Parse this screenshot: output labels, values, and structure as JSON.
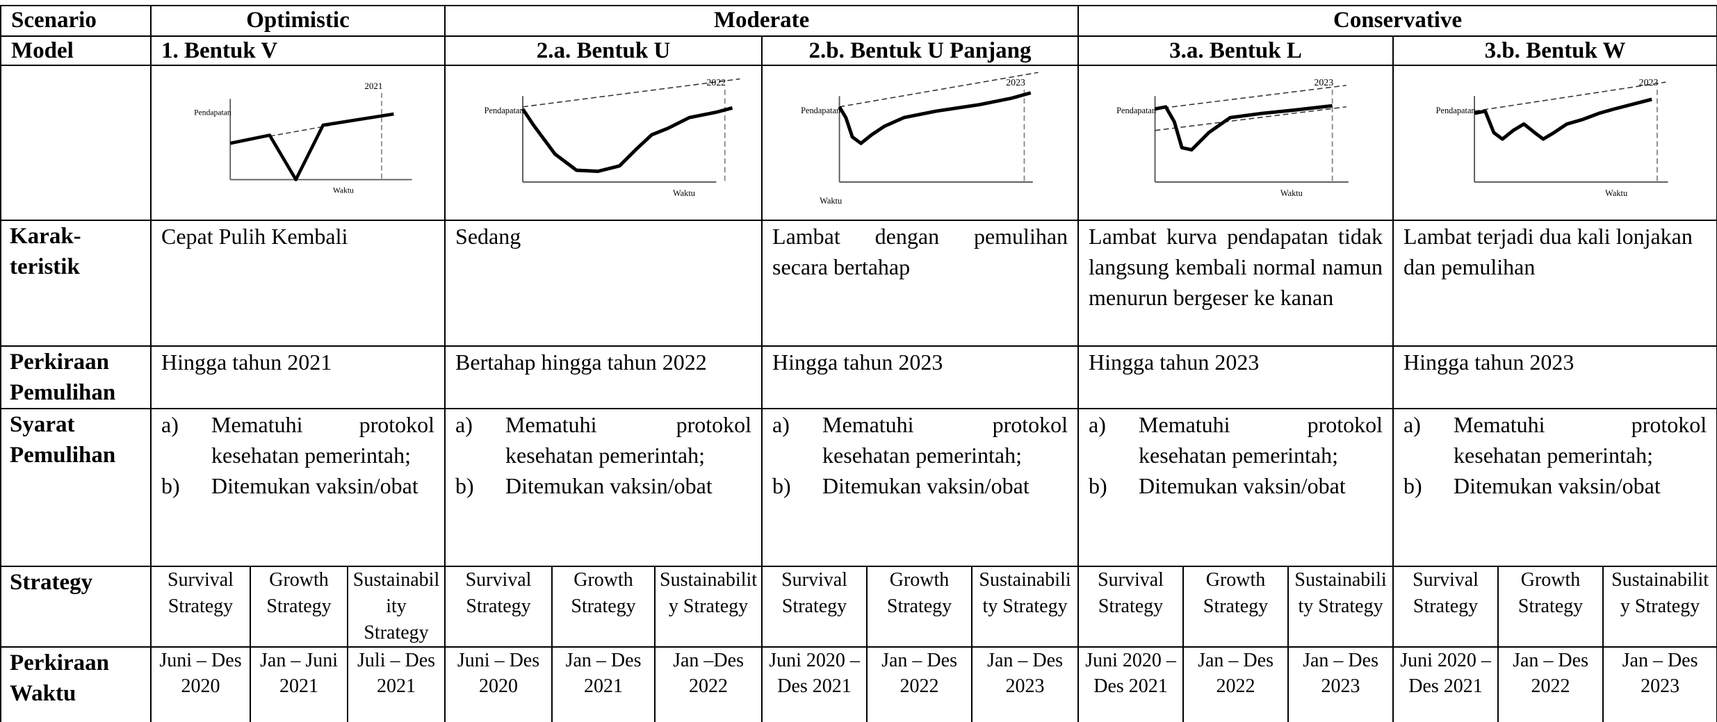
{
  "header": {
    "scenario_label": "Scenario",
    "scenarios": [
      "Optimistic",
      "Moderate",
      "Conservative"
    ]
  },
  "model_label": "Model",
  "row_labels": {
    "karakteristik": "Karak-teristik",
    "pemulihan": "Perkiraan Pemulihan",
    "syarat": "Syarat Pemulihan",
    "strategy": "Strategy",
    "waktu": "Perkiraan Waktu"
  },
  "models": [
    {
      "name": "1. Bentuk V",
      "year": "2021",
      "y_axis": "Pendapatan",
      "x_axis": "Waktu",
      "karakteristik": "Cepat Pulih Kembali",
      "pemulihan": "Hingga tahun 2021",
      "syarat": [
        {
          "marker": "a)",
          "text": "Mematuhi protokol kesehatan pemerintah;"
        },
        {
          "marker": "b)",
          "text": "Ditemukan vaksin/obat"
        }
      ],
      "strategies": [
        {
          "name": "Survival Strategy",
          "time": "Juni – Des 2020"
        },
        {
          "name": "Growth Strategy",
          "time": "Jan – Juni 2021"
        },
        {
          "name": "Sustainability Strategy",
          "time": "Juli – Des 2021"
        }
      ]
    },
    {
      "name": "2.a. Bentuk U",
      "year": "2022",
      "y_axis": "Pendapatan",
      "x_axis": "Waktu",
      "karakteristik": "Sedang",
      "pemulihan": "Bertahap hingga tahun 2022",
      "syarat": [
        {
          "marker": "a)",
          "text": "Mematuhi protokol kesehatan pemerintah;"
        },
        {
          "marker": "b)",
          "text": "Ditemukan vaksin/obat"
        }
      ],
      "strategies": [
        {
          "name": "Survival Strategy",
          "time": "Juni – Des 2020"
        },
        {
          "name": "Growth Strategy",
          "time": "Jan – Des 2021"
        },
        {
          "name": "Sustainability Strategy",
          "time": "Jan –Des 2022"
        }
      ]
    },
    {
      "name": "2.b. Bentuk U Panjang",
      "year": "2023",
      "y_axis": "Pendapatan",
      "x_axis": "Waktu",
      "karakteristik": "Lambat dengan pemulihan secara bertahap",
      "pemulihan": "Hingga tahun 2023",
      "syarat": [
        {
          "marker": "a)",
          "text": "Mematuhi protokol kesehatan pemerintah;"
        },
        {
          "marker": "b)",
          "text": "Ditemukan vaksin/obat"
        }
      ],
      "strategies": [
        {
          "name": "Survival Strategy",
          "time": "Juni 2020 – Des 2021"
        },
        {
          "name": "Growth Strategy",
          "time": "Jan – Des 2022"
        },
        {
          "name": "Sustainability Strategy",
          "time": "Jan – Des 2023"
        }
      ]
    },
    {
      "name": "3.a. Bentuk L",
      "year": "2023",
      "y_axis": "Pendapatan",
      "x_axis": "Waktu",
      "karakteristik": "Lambat kurva pendapatan tidak langsung kembali normal namun menurun bergeser ke kanan",
      "pemulihan": "Hingga tahun 2023",
      "syarat": [
        {
          "marker": "a)",
          "text": "Mematuhi protokol kesehatan pemerintah;"
        },
        {
          "marker": "b)",
          "text": "Ditemukan vaksin/obat"
        }
      ],
      "strategies": [
        {
          "name": "Survival Strategy",
          "time": "Juni 2020 – Des 2021"
        },
        {
          "name": "Growth Strategy",
          "time": "Jan – Des 2022"
        },
        {
          "name": "Sustainability Strategy",
          "time": "Jan – Des 2023"
        }
      ]
    },
    {
      "name": "3.b. Bentuk W",
      "year": "2023",
      "y_axis": "Pendapatan",
      "x_axis": "Waktu",
      "karakteristik": "Lambat terjadi dua kali lonjakan dan pemulihan",
      "pemulihan": "Hingga tahun 2023",
      "syarat": [
        {
          "marker": "a)",
          "text": "Mematuhi protokol kesehatan pemerintah;"
        },
        {
          "marker": "b)",
          "text": "Ditemukan vaksin/obat"
        }
      ],
      "strategies": [
        {
          "name": "Survival Strategy",
          "time": "Juni 2020 – Des 2021"
        },
        {
          "name": "Growth Strategy",
          "time": "Jan – Des 2022"
        },
        {
          "name": "Sustainability Strategy",
          "time": "Jan – Des 2023"
        }
      ]
    }
  ]
}
